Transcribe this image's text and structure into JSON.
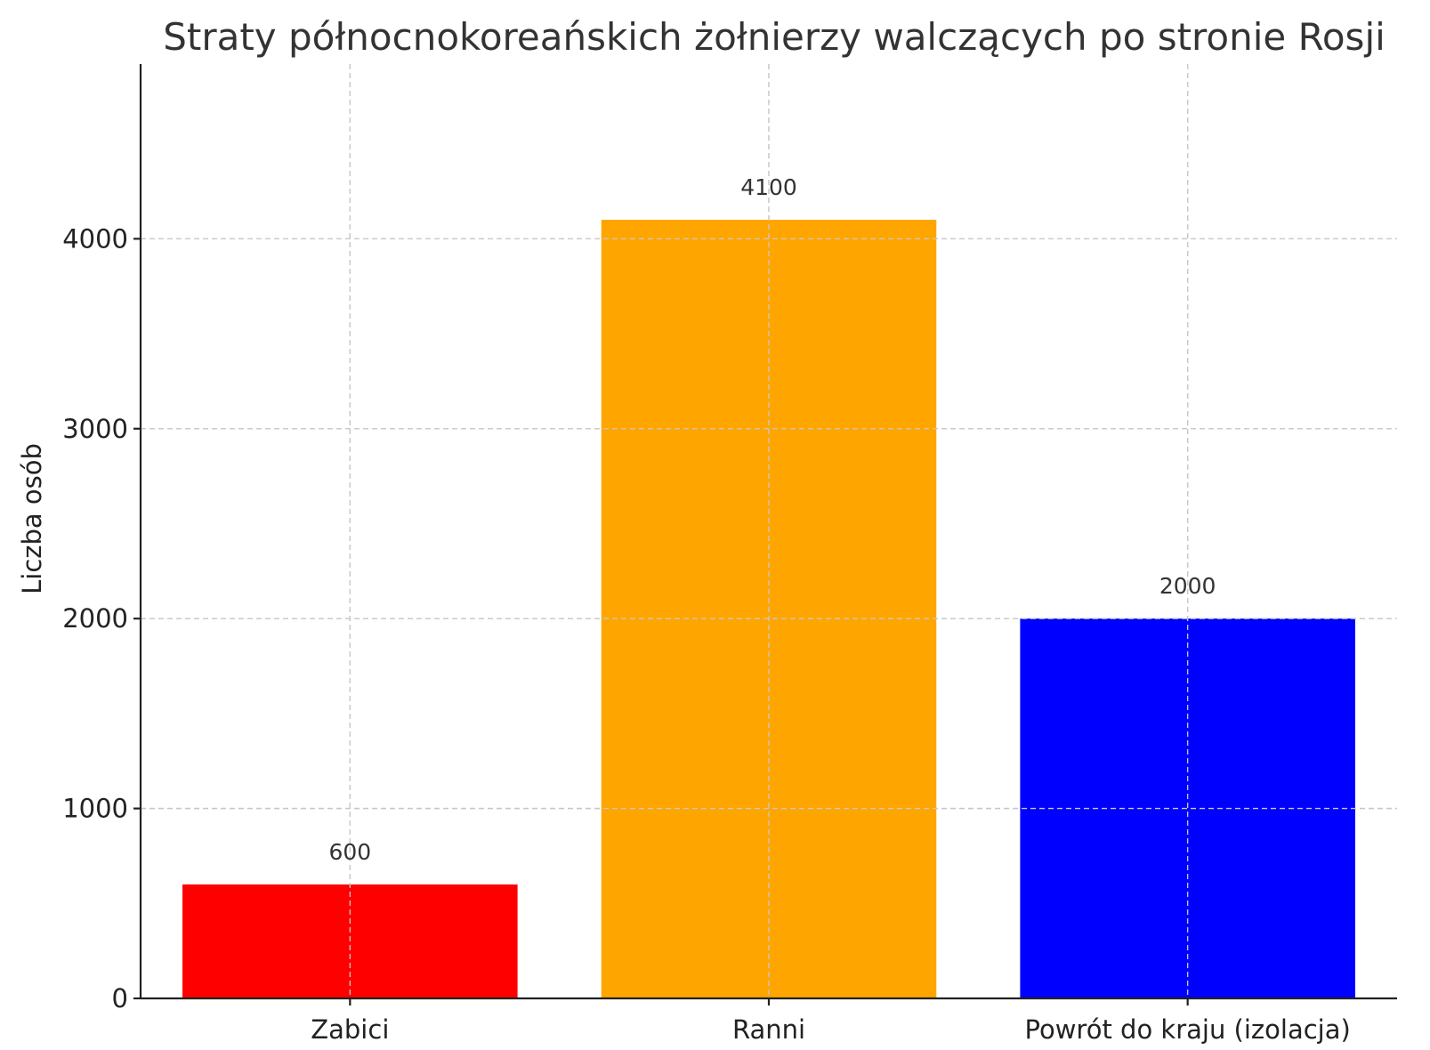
{
  "chart_data": {
    "type": "bar",
    "title": "Straty północnokoreańskich żołnierzy walczących po stronie Rosji",
    "xlabel": "",
    "ylabel": "Liczba osób",
    "categories": [
      "Zabici",
      "Ranni",
      "Powrót do kraju (izolacja)"
    ],
    "values": [
      600,
      4100,
      2000
    ],
    "value_labels": [
      "600",
      "4100",
      "2000"
    ],
    "colors": [
      "#ff0000",
      "#ffa500",
      "#0000ff"
    ],
    "ylim": [
      0,
      4920
    ],
    "yticks": [
      0,
      1000,
      2000,
      3000,
      4000
    ],
    "ytick_labels": [
      "0",
      "1000",
      "2000",
      "3000",
      "4000"
    ],
    "grid": true
  }
}
